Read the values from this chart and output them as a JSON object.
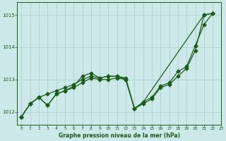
{
  "background_color": "#cce8e8",
  "grid_color": "#aacccc",
  "line_color": "#1a5c1a",
  "title": "Graphe pression niveau de la mer (hPa)",
  "xlim": [
    -0.5,
    23
  ],
  "ylim": [
    1011.6,
    1015.4
  ],
  "yticks": [
    1012,
    1013,
    1014,
    1015
  ],
  "xticks": [
    0,
    1,
    2,
    3,
    4,
    5,
    6,
    7,
    8,
    9,
    10,
    11,
    12,
    13,
    14,
    15,
    16,
    17,
    18,
    19,
    20,
    21,
    22,
    23
  ],
  "line1_x": [
    0,
    1,
    2,
    3,
    4,
    5,
    6,
    7,
    8,
    9,
    10,
    11,
    12,
    13,
    14,
    15,
    16,
    17,
    18,
    19,
    20,
    21,
    22
  ],
  "line1_y": [
    1011.85,
    1012.25,
    1012.45,
    1012.2,
    1012.55,
    1012.65,
    1012.75,
    1012.9,
    1013.05,
    1013.0,
    1013.0,
    1013.05,
    1013.0,
    1012.1,
    1012.25,
    1012.4,
    1012.75,
    1012.85,
    1013.1,
    1013.35,
    1013.9,
    1015.0,
    1015.05
  ],
  "line2_x": [
    0,
    1,
    2,
    3,
    4,
    5,
    6,
    7,
    8,
    9,
    10,
    11,
    12,
    13,
    14,
    21,
    22
  ],
  "line2_y": [
    1011.85,
    1012.25,
    1012.45,
    1012.2,
    1012.55,
    1012.65,
    1012.8,
    1013.1,
    1013.2,
    1013.05,
    1013.1,
    1013.1,
    1013.0,
    1012.1,
    1012.3,
    1015.0,
    1015.05
  ],
  "line3_x": [
    0,
    1,
    2,
    3,
    4,
    5,
    6,
    7,
    8,
    9,
    10,
    11,
    12,
    13,
    14,
    15,
    16,
    17,
    18,
    19,
    20,
    21,
    22
  ],
  "line3_y": [
    1011.85,
    1012.25,
    1012.45,
    1012.55,
    1012.65,
    1012.75,
    1012.85,
    1013.0,
    1013.1,
    1013.05,
    1013.1,
    1013.1,
    1013.05,
    1012.1,
    1012.3,
    1012.45,
    1012.8,
    1012.9,
    1013.25,
    1013.4,
    1014.05,
    1014.7,
    1015.05
  ]
}
